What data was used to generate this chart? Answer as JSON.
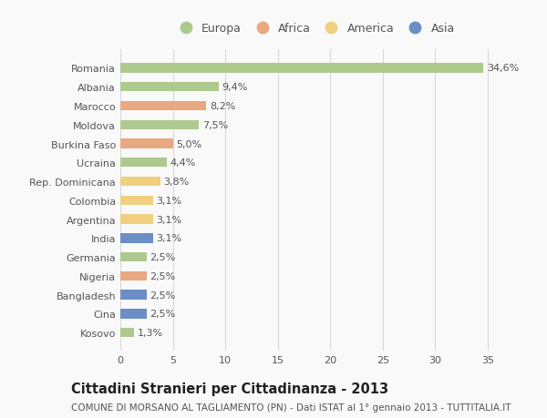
{
  "countries": [
    "Romania",
    "Albania",
    "Marocco",
    "Moldova",
    "Burkina Faso",
    "Ucraina",
    "Rep. Dominicana",
    "Colombia",
    "Argentina",
    "India",
    "Germania",
    "Nigeria",
    "Bangladesh",
    "Cina",
    "Kosovo"
  ],
  "values": [
    34.6,
    9.4,
    8.2,
    7.5,
    5.0,
    4.4,
    3.8,
    3.1,
    3.1,
    3.1,
    2.5,
    2.5,
    2.5,
    2.5,
    1.3
  ],
  "labels": [
    "34,6%",
    "9,4%",
    "8,2%",
    "7,5%",
    "5,0%",
    "4,4%",
    "3,8%",
    "3,1%",
    "3,1%",
    "3,1%",
    "2,5%",
    "2,5%",
    "2,5%",
    "2,5%",
    "1,3%"
  ],
  "continents": [
    "Europa",
    "Europa",
    "Africa",
    "Europa",
    "Africa",
    "Europa",
    "America",
    "America",
    "America",
    "Asia",
    "Europa",
    "Africa",
    "Asia",
    "Asia",
    "Europa"
  ],
  "colors": {
    "Europa": "#aec98d",
    "Africa": "#e8a882",
    "America": "#f0d080",
    "Asia": "#6b8fc4"
  },
  "legend_order": [
    "Europa",
    "Africa",
    "America",
    "Asia"
  ],
  "xlim": [
    0,
    37
  ],
  "xticks": [
    0,
    5,
    10,
    15,
    20,
    25,
    30,
    35
  ],
  "title": "Cittadini Stranieri per Cittadinanza - 2013",
  "subtitle": "COMUNE DI MORSANO AL TAGLIAMENTO (PN) - Dati ISTAT al 1° gennaio 2013 - TUTTITALIA.IT",
  "bar_height": 0.5,
  "background_color": "#f9f9f9",
  "grid_color": "#d8d8d8",
  "text_color": "#555555",
  "label_fontsize": 8.0,
  "tick_fontsize": 8.0,
  "title_fontsize": 10.5,
  "subtitle_fontsize": 7.5
}
